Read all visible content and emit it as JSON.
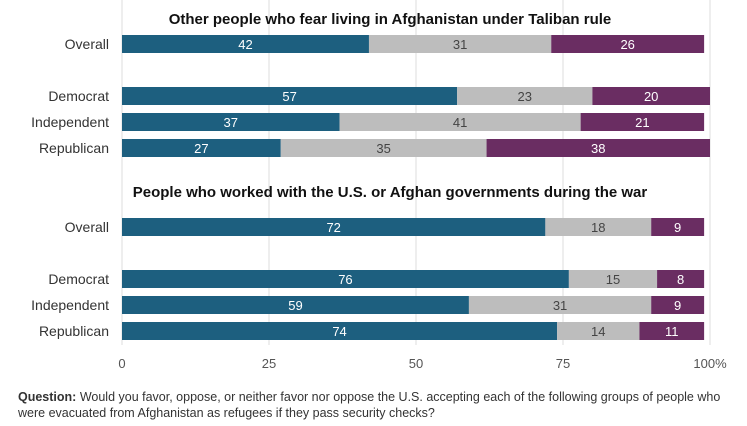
{
  "chart_data": {
    "type": "bar",
    "orientation": "horizontal",
    "stacked": true,
    "xlim": [
      0,
      100
    ],
    "x_ticks": [
      "0",
      "25",
      "50",
      "75",
      "100%"
    ],
    "grid": true,
    "colors": [
      "#1d5f7f",
      "#bdbdbd",
      "#6a2d62"
    ],
    "panels": [
      {
        "title": "Other people who fear living in Afghanistan under Taliban rule",
        "categories": [
          "Overall",
          "Democrat",
          "Independent",
          "Republican"
        ],
        "values": [
          [
            42,
            31,
            26
          ],
          [
            57,
            23,
            20
          ],
          [
            37,
            41,
            21
          ],
          [
            27,
            35,
            38
          ]
        ]
      },
      {
        "title": "People who worked with the U.S. or Afghan governments during the war",
        "categories": [
          "Overall",
          "Democrat",
          "Independent",
          "Republican"
        ],
        "values": [
          [
            72,
            18,
            9
          ],
          [
            76,
            15,
            8
          ],
          [
            59,
            31,
            9
          ],
          [
            74,
            14,
            11
          ]
        ]
      }
    ]
  },
  "footnote": {
    "question_label": "Question:",
    "question_text": "Would you favor, oppose, or neither favor nor oppose the U.S. accepting each of the following groups of people who were evacuated from Afghanistan as refugees if they pass security checks?"
  }
}
